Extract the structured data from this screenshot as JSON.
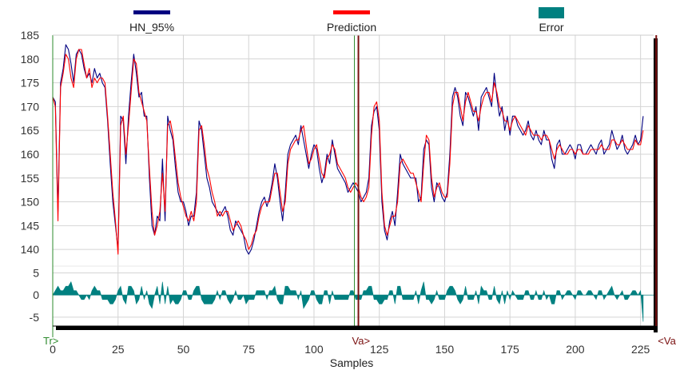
{
  "chart_data": {
    "type": "line",
    "xlabel": "Samples",
    "ylabel": "",
    "xlim": [
      0,
      230
    ],
    "x_ticks": [
      "0",
      "25",
      "50",
      "75",
      "100",
      "125",
      "150",
      "175",
      "200",
      "225"
    ],
    "top_panel": {
      "ylim": [
        137,
        185
      ],
      "y_ticks": [
        "185",
        "180",
        "175",
        "170",
        "165",
        "160",
        "155",
        "150",
        "145",
        "140"
      ]
    },
    "bottom_panel": {
      "ylim": [
        -7,
        6
      ],
      "y_ticks": [
        "5",
        "0",
        "-5"
      ]
    },
    "grid": true,
    "legend_position": "top",
    "markers": [
      {
        "label": "Tr>",
        "x": 0,
        "color": "#2e8b2e"
      },
      {
        "label": "Va>",
        "x": 117,
        "color": "#7a1010"
      },
      {
        "label": "<Va",
        "x": 231,
        "color": "#7a1010"
      }
    ],
    "series": [
      {
        "name": "HN_95%",
        "color": "#000080",
        "style": "line",
        "x_start": 0,
        "values": [
          172,
          171,
          148,
          175,
          178,
          183,
          182,
          179,
          175,
          181,
          182,
          181,
          178,
          176,
          177,
          175,
          178,
          176,
          177,
          175,
          174,
          167,
          158,
          150,
          145,
          140,
          168,
          167,
          158,
          168,
          175,
          181,
          177,
          172,
          173,
          168,
          168,
          155,
          145,
          143,
          147,
          146,
          159,
          146,
          168,
          165,
          163,
          157,
          152,
          150,
          150,
          148,
          145,
          147,
          147,
          152,
          167,
          165,
          160,
          155,
          153,
          150,
          149,
          148,
          147,
          148,
          149,
          147,
          144,
          143,
          146,
          145,
          144,
          143,
          140,
          139,
          140,
          142,
          145,
          148,
          150,
          151,
          149,
          151,
          154,
          158,
          155,
          150,
          146,
          152,
          160,
          162,
          163,
          164,
          162,
          166,
          163,
          160,
          157,
          160,
          162,
          161,
          157,
          154,
          156,
          160,
          158,
          163,
          160,
          157,
          156,
          155,
          154,
          152,
          153,
          154,
          153,
          152,
          150,
          151,
          152,
          155,
          166,
          169,
          170,
          165,
          150,
          144,
          142,
          146,
          148,
          145,
          152,
          160,
          158,
          157,
          156,
          155,
          155,
          155,
          150,
          151,
          161,
          163,
          162,
          153,
          150,
          154,
          153,
          151,
          150,
          152,
          160,
          172,
          174,
          172,
          168,
          166,
          173,
          172,
          170,
          168,
          170,
          165,
          172,
          173,
          174,
          172,
          170,
          177,
          172,
          168,
          170,
          165,
          168,
          164,
          168,
          168,
          166,
          165,
          164,
          165,
          167,
          164,
          163,
          165,
          163,
          162,
          165,
          163,
          163,
          159,
          157,
          162,
          163,
          160,
          160,
          161,
          162,
          161,
          159,
          162,
          162,
          160,
          160,
          161,
          162,
          161,
          160,
          162,
          163,
          160,
          161,
          162,
          165,
          163,
          161,
          162,
          164,
          161,
          160,
          161,
          162,
          164,
          162,
          163,
          168
        ]
      },
      {
        "name": "Prediction",
        "color": "#ff0000",
        "style": "line",
        "x_start": 0,
        "values": [
          172,
          170,
          146,
          174,
          177,
          181,
          180,
          176,
          174,
          180,
          182,
          182,
          179,
          176,
          178,
          174,
          176,
          175,
          176,
          176,
          175,
          168,
          160,
          152,
          146,
          139,
          166,
          168,
          160,
          166,
          173,
          180,
          179,
          173,
          171,
          169,
          167,
          157,
          148,
          143,
          145,
          148,
          156,
          148,
          166,
          167,
          164,
          159,
          154,
          151,
          149,
          147,
          146,
          148,
          146,
          150,
          165,
          166,
          162,
          157,
          155,
          152,
          150,
          147,
          148,
          147,
          148,
          148,
          146,
          144,
          145,
          146,
          145,
          143,
          142,
          140,
          141,
          143,
          144,
          147,
          149,
          150,
          150,
          150,
          153,
          156,
          156,
          152,
          148,
          150,
          158,
          161,
          162,
          163,
          163,
          165,
          166,
          162,
          158,
          159,
          161,
          162,
          159,
          156,
          155,
          159,
          160,
          162,
          161,
          158,
          157,
          156,
          155,
          153,
          152,
          153,
          154,
          153,
          151,
          150,
          151,
          153,
          164,
          170,
          171,
          167,
          152,
          145,
          143,
          145,
          147,
          147,
          150,
          158,
          159,
          158,
          157,
          156,
          156,
          154,
          152,
          150,
          158,
          164,
          163,
          155,
          151,
          153,
          154,
          152,
          151,
          151,
          158,
          170,
          173,
          173,
          170,
          167,
          171,
          173,
          171,
          169,
          169,
          167,
          170,
          172,
          173,
          173,
          171,
          175,
          173,
          170,
          169,
          167,
          167,
          165,
          167,
          168,
          167,
          166,
          165,
          164,
          166,
          165,
          164,
          164,
          164,
          163,
          164,
          164,
          163,
          161,
          159,
          161,
          162,
          161,
          160,
          160,
          161,
          161,
          160,
          161,
          161,
          160,
          160,
          160,
          161,
          161,
          161,
          161,
          162,
          161,
          161,
          161,
          163,
          163,
          162,
          162,
          163,
          162,
          161,
          161,
          161,
          163,
          162,
          162,
          165
        ]
      },
      {
        "name": "Error",
        "color": "#008080",
        "style": "area",
        "x_start": 0,
        "values": [
          0.0,
          1.0,
          2.0,
          1.0,
          1.0,
          2.0,
          2.0,
          3.0,
          1.0,
          1.0,
          0.0,
          -1.0,
          -1.0,
          0.0,
          -1.0,
          1.0,
          2.0,
          1.0,
          1.0,
          -1.0,
          -1.0,
          -1.0,
          -2.0,
          -2.0,
          -1.0,
          1.0,
          2.0,
          -1.0,
          -2.0,
          2.0,
          2.0,
          1.0,
          -2.0,
          -1.0,
          2.0,
          -1.0,
          1.0,
          -2.0,
          -3.0,
          0.0,
          2.0,
          -2.0,
          3.0,
          -2.0,
          2.0,
          -2.0,
          -1.0,
          -2.0,
          -2.0,
          -1.0,
          1.0,
          1.0,
          -1.0,
          -1.0,
          1.0,
          2.0,
          2.0,
          -1.0,
          -2.0,
          -2.0,
          -2.0,
          -2.0,
          -1.0,
          1.0,
          -1.0,
          1.0,
          1.0,
          -1.0,
          -2.0,
          -1.0,
          1.0,
          -1.0,
          -1.0,
          0.0,
          -2.0,
          -1.0,
          -1.0,
          -1.0,
          1.0,
          1.0,
          1.0,
          1.0,
          -1.0,
          1.0,
          1.0,
          2.0,
          -1.0,
          -2.0,
          -2.0,
          2.0,
          2.0,
          1.0,
          1.0,
          1.0,
          -1.0,
          1.0,
          -3.0,
          -2.0,
          -1.0,
          1.0,
          1.0,
          -1.0,
          -2.0,
          -2.0,
          1.0,
          1.0,
          -2.0,
          1.0,
          -1.0,
          -1.0,
          -1.0,
          -1.0,
          -1.0,
          -1.0,
          1.0,
          1.0,
          -1.0,
          -1.0,
          -1.0,
          1.0,
          1.0,
          2.0,
          2.0,
          -1.0,
          -1.0,
          -2.0,
          -2.0,
          -1.0,
          -1.0,
          1.0,
          1.0,
          -2.0,
          2.0,
          2.0,
          -1.0,
          -1.0,
          -1.0,
          -1.0,
          -1.0,
          1.0,
          -2.0,
          1.0,
          3.0,
          -1.0,
          -1.0,
          -2.0,
          -1.0,
          1.0,
          -1.0,
          -1.0,
          -1.0,
          1.0,
          2.0,
          2.0,
          1.0,
          -1.0,
          -2.0,
          -1.0,
          2.0,
          -1.0,
          -1.0,
          -1.0,
          1.0,
          -2.0,
          2.0,
          1.0,
          1.0,
          -1.0,
          -1.0,
          2.0,
          -1.0,
          -2.0,
          1.0,
          -2.0,
          1.0,
          -1.0,
          1.0,
          0.0,
          -1.0,
          -1.0,
          -1.0,
          1.0,
          1.0,
          -1.0,
          -1.0,
          1.0,
          -1.0,
          -1.0,
          1.0,
          -1.0,
          0.0,
          -2.0,
          -2.0,
          1.0,
          1.0,
          -1.0,
          0.0,
          1.0,
          1.0,
          0.0,
          -1.0,
          1.0,
          1.0,
          0.0,
          0.0,
          1.0,
          1.0,
          0.0,
          -1.0,
          1.0,
          1.0,
          -1.0,
          0.0,
          1.0,
          2.0,
          0.0,
          -1.0,
          0.0,
          1.0,
          -1.0,
          -1.0,
          0.0,
          1.0,
          1.0,
          0.0,
          1.0,
          -6.0
        ]
      }
    ]
  }
}
